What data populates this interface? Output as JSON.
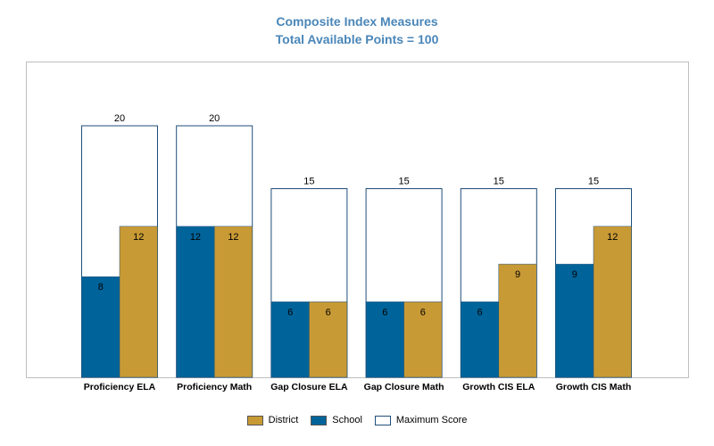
{
  "chart_data": {
    "type": "bar",
    "title": "Composite Index Measures",
    "subtitle": "Total Available Points = 100",
    "categories": [
      "Proficiency ELA",
      "Proficiency Math",
      "Gap Closure ELA",
      "Gap Closure Math",
      "Growth CIS ELA",
      "Growth CIS Math"
    ],
    "series": [
      {
        "name": "Maximum Score",
        "values": [
          20,
          20,
          15,
          15,
          15,
          15
        ],
        "color": "#ffffff",
        "stroke": "#1f4e79"
      },
      {
        "name": "School",
        "values": [
          8,
          12,
          6,
          6,
          6,
          9
        ],
        "color": "#00649a"
      },
      {
        "name": "District",
        "values": [
          12,
          12,
          6,
          6,
          9,
          12
        ],
        "color": "#c89a35"
      }
    ],
    "ylim": [
      0,
      25
    ],
    "grid": false,
    "legend": "bottom",
    "legend_order": [
      "District",
      "School",
      "Maximum Score"
    ]
  }
}
